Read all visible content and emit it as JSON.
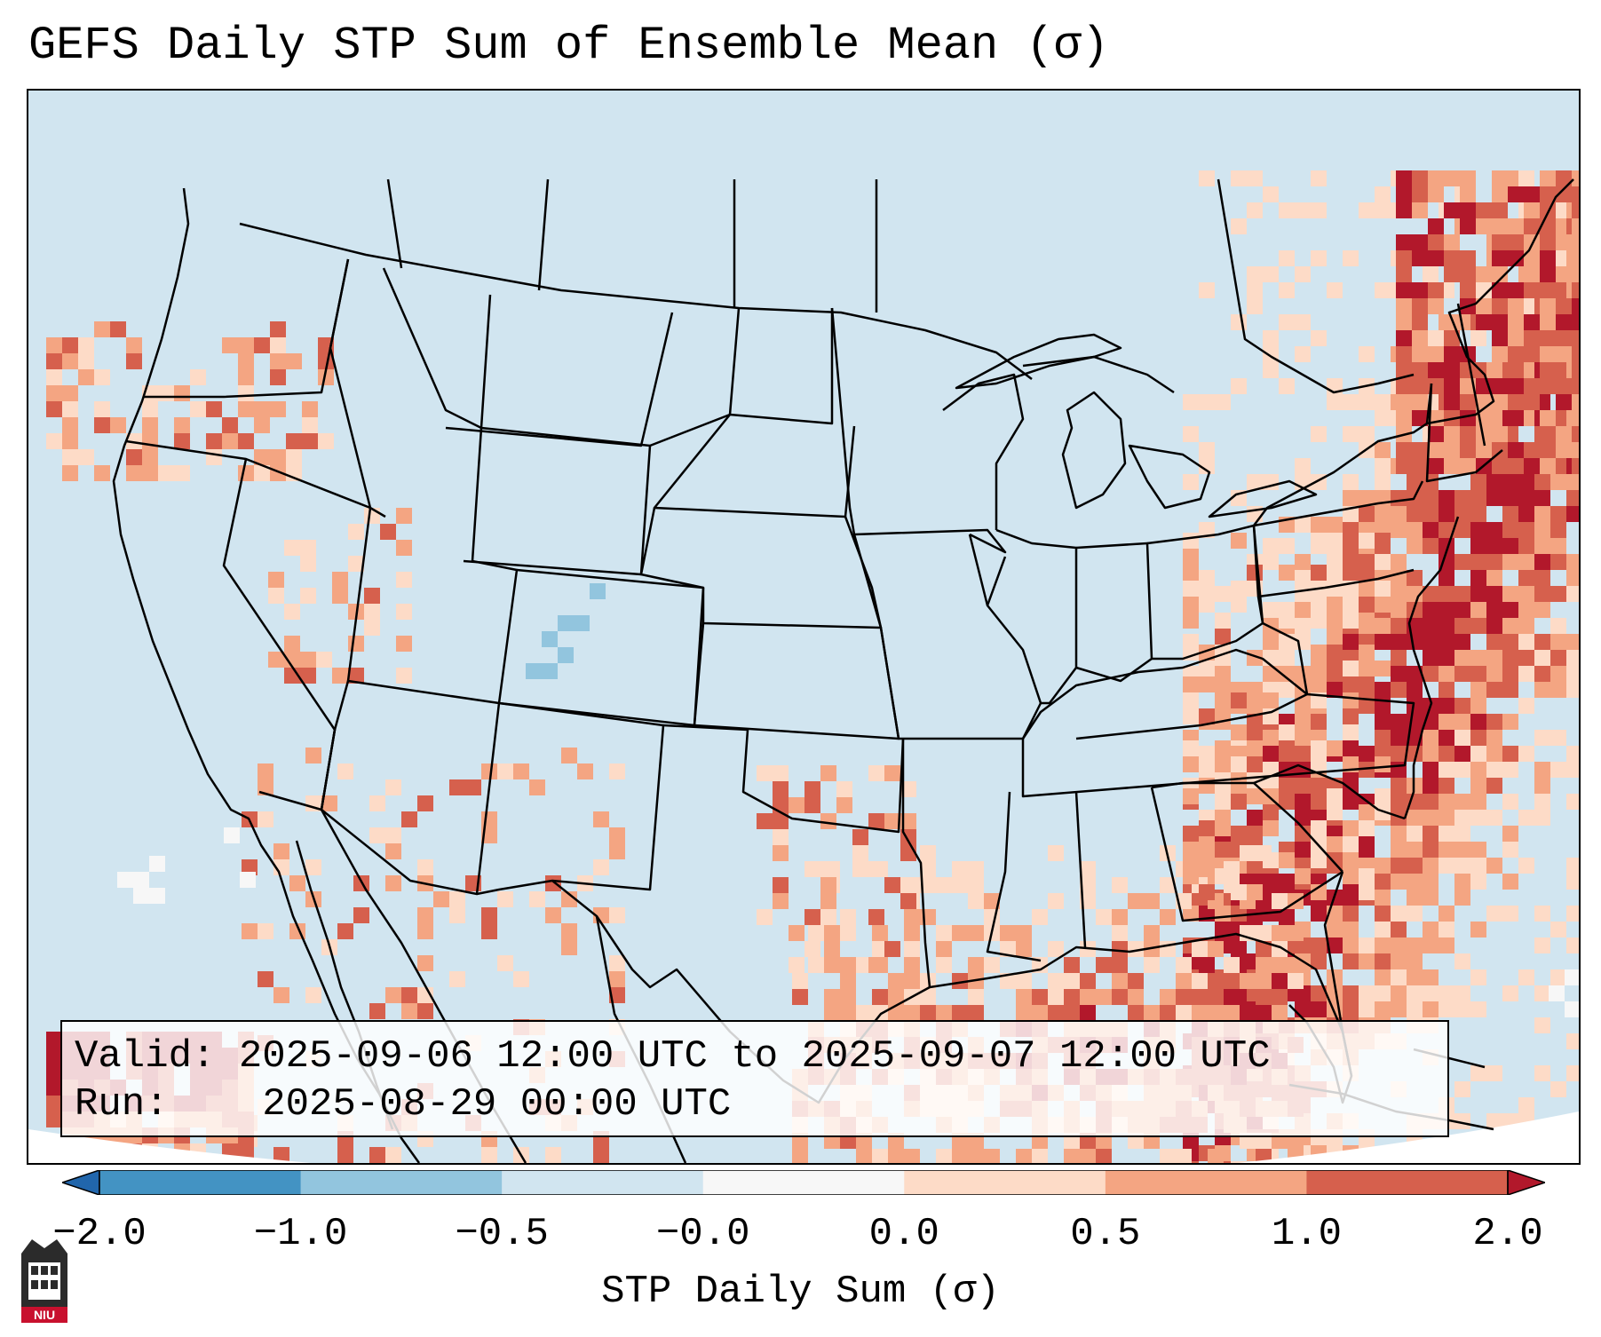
{
  "title": "GEFS Daily STP Sum of Ensemble Mean (σ)",
  "legend": {
    "valid_label": "Valid:",
    "valid_value": "2025-09-06 12:00 UTC to 2025-09-07 12:00 UTC",
    "run_label": "Run:",
    "run_value": "2025-08-29 00:00 UTC"
  },
  "colorbar": {
    "label": "STP Daily Sum (σ)",
    "ticks": [
      "−2.0",
      "−1.0",
      "−0.5",
      "−0.0",
      "0.0",
      "0.5",
      "1.0",
      "2.0"
    ],
    "bin_colors": [
      "#2166ac",
      "#4393c3",
      "#92c5de",
      "#d1e5f0",
      "#f7f7f7",
      "#fddbc7",
      "#f4a582",
      "#d6604d",
      "#b2182b"
    ]
  },
  "colors": {
    "ocean_background": "#d1e5f0",
    "strong_positive": "#b2182b",
    "moderate_positive": "#d6604d",
    "weak_positive": "#f4a582",
    "slight_positive": "#fddbc7",
    "neutral": "#f7f7f7",
    "slight_negative": "#92c5de"
  },
  "logo": {
    "text": "NIU",
    "icon": "university-building-icon",
    "color": "#c8102e"
  }
}
